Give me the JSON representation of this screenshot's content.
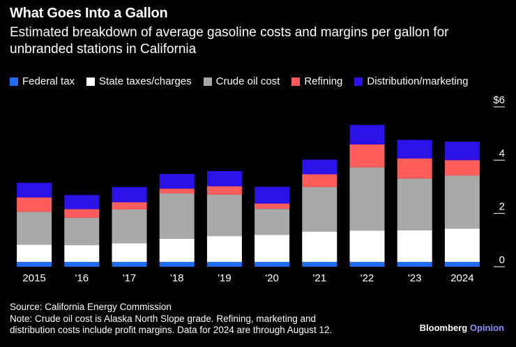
{
  "header": {
    "title": "What Goes Into a Gallon",
    "subtitle": "Estimated breakdown of average gasoline costs and margins per gallon for unbranded stations in California"
  },
  "chart_data": {
    "type": "bar",
    "stacked": true,
    "categories": [
      "2015",
      "'16",
      "'17",
      "'18",
      "'19",
      "'20",
      "'21",
      "'22",
      "'23",
      "2024"
    ],
    "y_ticks": [
      "$6",
      "4",
      "2",
      "0"
    ],
    "y_tick_values": [
      6,
      4,
      2,
      0
    ],
    "ylim": [
      0,
      6
    ],
    "grid": false,
    "legend_position": "top",
    "series": [
      {
        "name": "Federal tax",
        "color": "#1f6cf0",
        "values": [
          0.18,
          0.18,
          0.18,
          0.18,
          0.18,
          0.18,
          0.18,
          0.18,
          0.18,
          0.18
        ]
      },
      {
        "name": "State taxes/charges",
        "color": "#ffffff",
        "values": [
          0.65,
          0.63,
          0.7,
          0.87,
          0.97,
          1.02,
          1.14,
          1.17,
          1.19,
          1.25
        ]
      },
      {
        "name": "Crude oil cost",
        "color": "#a9a9a9",
        "values": [
          1.23,
          1.03,
          1.27,
          1.7,
          1.55,
          0.97,
          1.67,
          2.38,
          1.94,
          1.99
        ]
      },
      {
        "name": "Refining",
        "color": "#ff5c5c",
        "values": [
          0.54,
          0.32,
          0.27,
          0.18,
          0.32,
          0.2,
          0.48,
          0.86,
          0.75,
          0.58
        ]
      },
      {
        "name": "Distribution/marketing",
        "color": "#2a12e8",
        "values": [
          0.55,
          0.53,
          0.57,
          0.55,
          0.57,
          0.63,
          0.55,
          0.73,
          0.7,
          0.69
        ]
      }
    ]
  },
  "footer": {
    "source": "Source: California Energy Commission",
    "note_line1": "Note: Crude oil cost is Alaska North Slope grade. Refining, marketing and",
    "note_line2": "distribution costs include profit margins. Data for 2024 are through August 12.",
    "brand_main": "Bloomberg",
    "brand_accent": "Opinion"
  }
}
